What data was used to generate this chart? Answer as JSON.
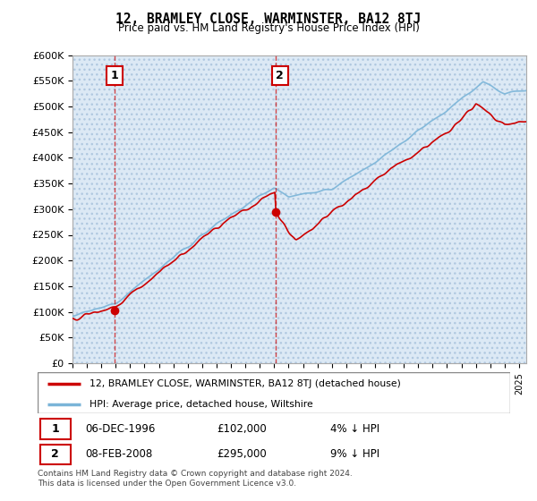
{
  "title": "12, BRAMLEY CLOSE, WARMINSTER, BA12 8TJ",
  "subtitle": "Price paid vs. HM Land Registry's House Price Index (HPI)",
  "ylim": [
    0,
    600000
  ],
  "yticks": [
    0,
    50000,
    100000,
    150000,
    200000,
    250000,
    300000,
    350000,
    400000,
    450000,
    500000,
    550000,
    600000
  ],
  "ytick_labels": [
    "£0",
    "£50K",
    "£100K",
    "£150K",
    "£200K",
    "£250K",
    "£300K",
    "£350K",
    "£400K",
    "£450K",
    "£500K",
    "£550K",
    "£600K"
  ],
  "hpi_color": "#7ab4d8",
  "price_color": "#cc0000",
  "transaction1_date": 1996.92,
  "transaction1_price": 102000,
  "transaction2_date": 2008.1,
  "transaction2_price": 295000,
  "legend_house_label": "12, BRAMLEY CLOSE, WARMINSTER, BA12 8TJ (detached house)",
  "legend_hpi_label": "HPI: Average price, detached house, Wiltshire",
  "annotation1_label": "1",
  "annotation2_label": "2",
  "row1_date": "06-DEC-1996",
  "row1_price": "£102,000",
  "row1_hpi": "4% ↓ HPI",
  "row2_date": "08-FEB-2008",
  "row2_price": "£295,000",
  "row2_hpi": "9% ↓ HPI",
  "footnote": "Contains HM Land Registry data © Crown copyright and database right 2024.\nThis data is licensed under the Open Government Licence v3.0.",
  "bg_color": "#ffffff",
  "plot_bg_color": "#dce9f5",
  "grid_color": "#ffffff",
  "hatch_area_color": "#c8d8e8",
  "xlim_start": 1994,
  "xlim_end": 2025.5
}
